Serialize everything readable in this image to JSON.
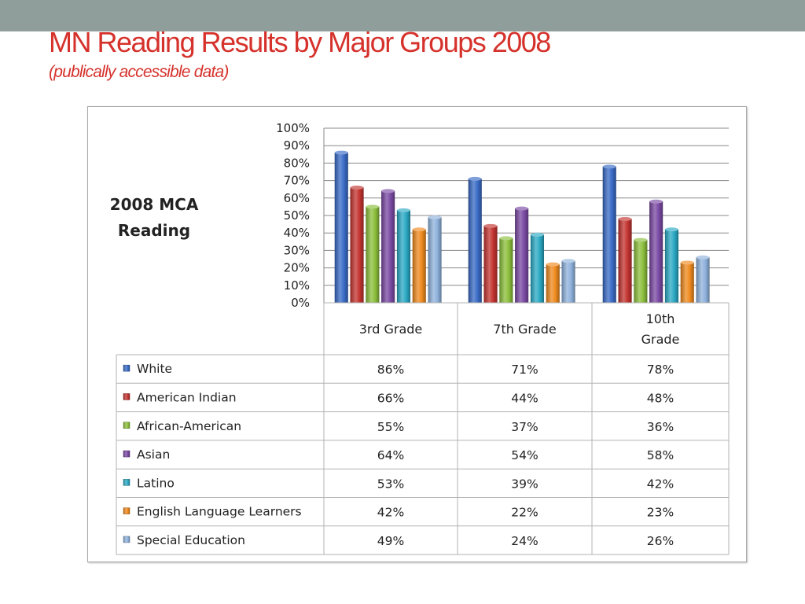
{
  "slide": {
    "title": "MN Reading Results by Major Groups 2008",
    "subtitle": "(publically accessible data)"
  },
  "chart_data": {
    "type": "bar",
    "title": "2008 MCA Reading",
    "title_lines": [
      "2008 MCA",
      "Reading"
    ],
    "categories": [
      "3rd Grade",
      "7th Grade",
      "10th Grade"
    ],
    "category_label_lines": [
      [
        "3rd Grade"
      ],
      [
        "7th Grade"
      ],
      [
        "10th",
        "Grade"
      ]
    ],
    "y_ticks": [
      "100%",
      "90%",
      "80%",
      "70%",
      "60%",
      "50%",
      "40%",
      "30%",
      "20%",
      "10%",
      "0%"
    ],
    "ylim": [
      0,
      100
    ],
    "grid": true,
    "legend": "data-table",
    "series": [
      {
        "name": "White",
        "values": [
          86,
          71,
          78
        ],
        "labels": [
          "86%",
          "71%",
          "78%"
        ],
        "color": "#3a6bc6"
      },
      {
        "name": "American Indian",
        "values": [
          66,
          44,
          48
        ],
        "labels": [
          "66%",
          "44%",
          "48%"
        ],
        "color": "#c33430"
      },
      {
        "name": "African-American",
        "values": [
          55,
          37,
          36
        ],
        "labels": [
          "55%",
          "37%",
          "36%"
        ],
        "color": "#8cbf3c"
      },
      {
        "name": "Asian",
        "values": [
          64,
          54,
          58
        ],
        "labels": [
          "64%",
          "54%",
          "58%"
        ],
        "color": "#7a4aa3"
      },
      {
        "name": "Latino",
        "values": [
          53,
          39,
          42
        ],
        "labels": [
          "53%",
          "39%",
          "42%"
        ],
        "color": "#2ba9c4"
      },
      {
        "name": "English Language Learners",
        "values": [
          42,
          22,
          23
        ],
        "labels": [
          "42%",
          "22%",
          "23%"
        ],
        "color": "#ef8a1e"
      },
      {
        "name": "Special Education",
        "values": [
          49,
          24,
          26
        ],
        "labels": [
          "49%",
          "24%",
          "26%"
        ],
        "color": "#8fb2dc"
      }
    ]
  }
}
